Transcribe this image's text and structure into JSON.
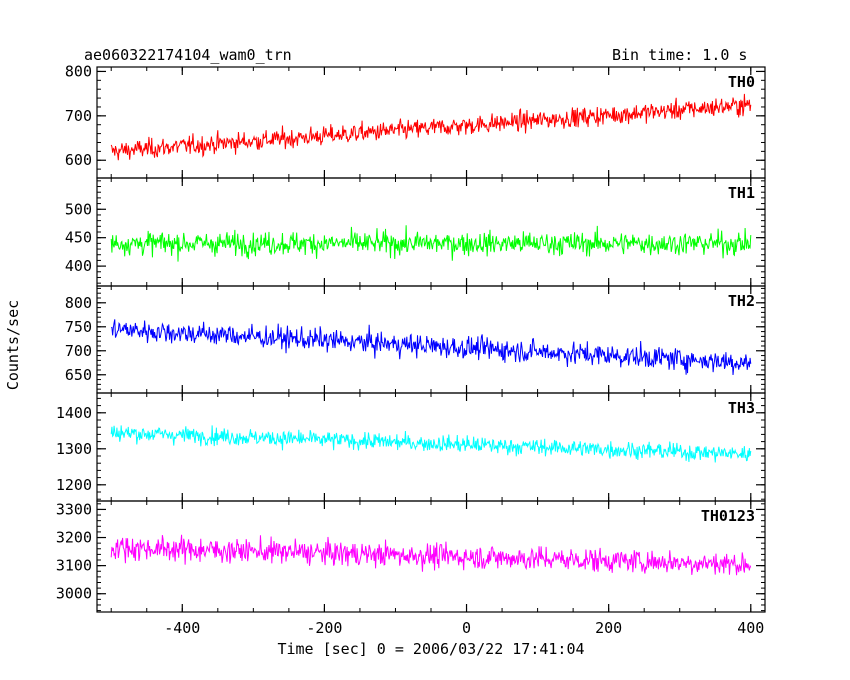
{
  "chart_data": {
    "type": "line",
    "title": "ae060322174104_wam0_trn",
    "bin_time_label": "Bin time: 1.0 s",
    "xlabel": "Time [sec] 0 = 2006/03/22 17:41:04",
    "ylabel": "Counts/sec",
    "xlim": [
      -520,
      420
    ],
    "x_tick_labels": [
      "-400",
      "-200",
      "0",
      "200",
      "400"
    ],
    "x_ticks": [
      -400,
      -200,
      0,
      200,
      400
    ],
    "bin_time_s": 1.0,
    "x_start": -500,
    "x_end": 400,
    "grid": false,
    "panels": [
      {
        "name": "TH0",
        "color": "#ff0000",
        "ylim": [
          560,
          810
        ],
        "yticks": [
          600,
          700,
          800
        ],
        "trend": [
          620,
          725
        ],
        "noise": 28
      },
      {
        "name": "TH1",
        "color": "#00ff00",
        "ylim": [
          365,
          555
        ],
        "yticks": [
          400,
          450,
          500
        ],
        "trend": [
          440,
          440
        ],
        "noise": 26
      },
      {
        "name": "TH2",
        "color": "#0000ff",
        "ylim": [
          612,
          835
        ],
        "yticks": [
          650,
          700,
          750,
          800
        ],
        "trend": [
          745,
          675
        ],
        "noise": 30
      },
      {
        "name": "TH3",
        "color": "#00ffff",
        "ylim": [
          1155,
          1455
        ],
        "yticks": [
          1200,
          1300,
          1400
        ],
        "trend": [
          1345,
          1285
        ],
        "noise": 30
      },
      {
        "name": "TH0123",
        "color": "#ff00ff",
        "ylim": [
          2935,
          3330
        ],
        "yticks": [
          3000,
          3100,
          3200,
          3300
        ],
        "trend": [
          3165,
          3105
        ],
        "noise": 55
      }
    ]
  }
}
